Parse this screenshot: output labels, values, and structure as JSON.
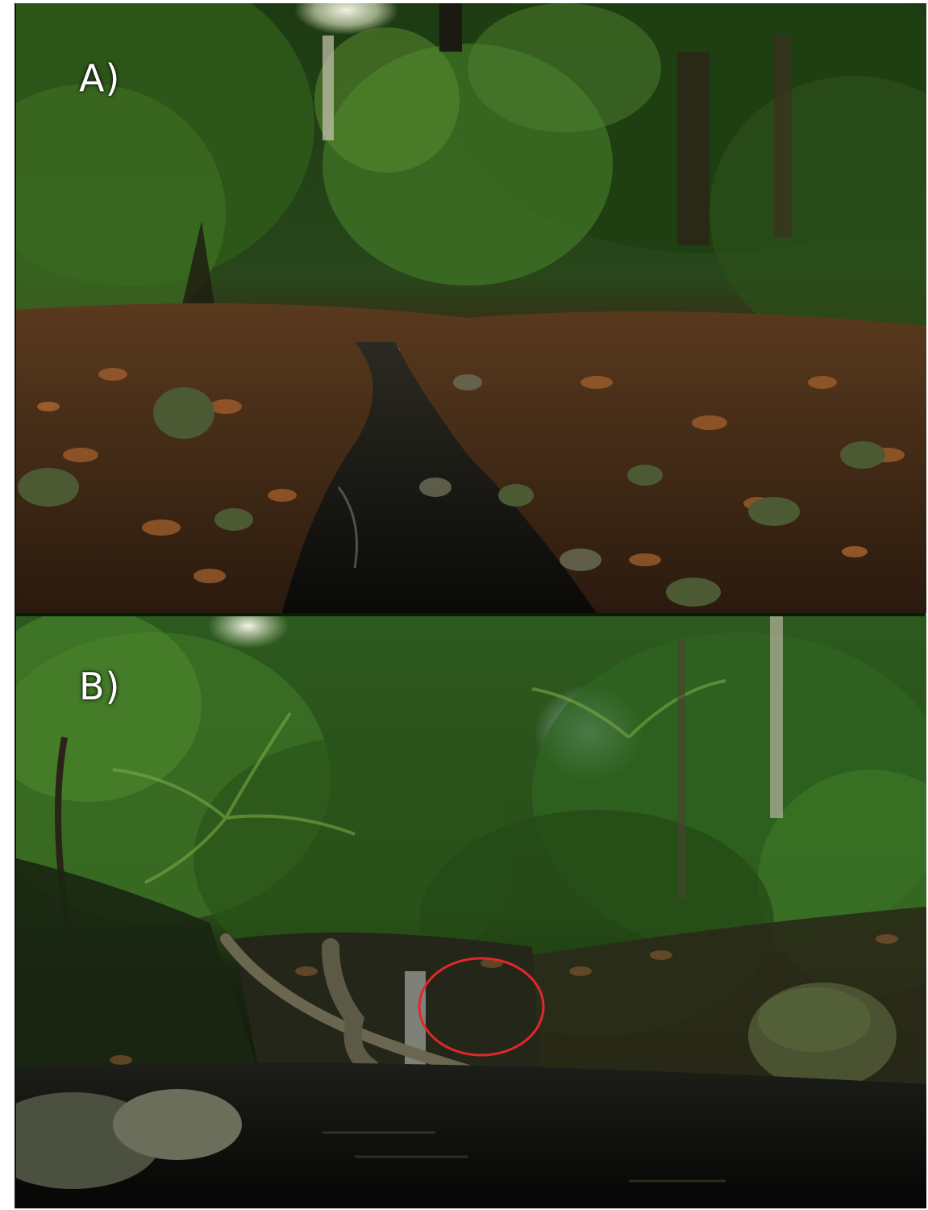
{
  "figure": {
    "panel_a": {
      "label": "A)"
    },
    "panel_b": {
      "label": "B)"
    }
  },
  "colors": {
    "canopy_dark": "#0f2a0c",
    "canopy_mid": "#2e5a1c",
    "canopy_light": "#6f9a3a",
    "sky": "#e8ecd8",
    "leaf_litter": "#7a4a24",
    "water": "#0a0d0a",
    "highlight_circle": "#e0272b"
  }
}
